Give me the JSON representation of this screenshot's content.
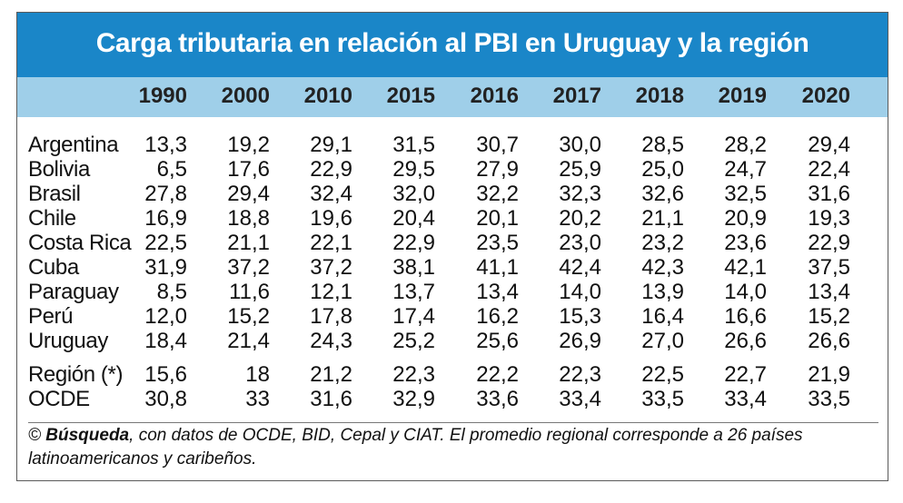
{
  "title": "Carga tributaria en relación al PBI en Uruguay y la región",
  "footer": {
    "copyright": "©",
    "source_brand": "Búsqueda",
    "text": ", con datos de OCDE, BID, Cepal y CIAT. El promedio regional corresponde a 26 países latinoamericanos y caribeños."
  },
  "colors": {
    "title_bg": "#1a86c8",
    "header_bg": "#9fcfe9"
  },
  "chart_data": {
    "type": "table",
    "columns": [
      "1990",
      "2000",
      "2010",
      "2015",
      "2016",
      "2017",
      "2018",
      "2019",
      "2020"
    ],
    "rows": [
      {
        "label": "Argentina",
        "values": [
          "13,3",
          "19,2",
          "29,1",
          "31,5",
          "30,7",
          "30,0",
          "28,5",
          "28,2",
          "29,4"
        ]
      },
      {
        "label": "Bolivia",
        "values": [
          "6,5",
          "17,6",
          "22,9",
          "29,5",
          "27,9",
          "25,9",
          "25,0",
          "24,7",
          "22,4"
        ]
      },
      {
        "label": "Brasil",
        "values": [
          "27,8",
          "29,4",
          "32,4",
          "32,0",
          "32,2",
          "32,3",
          "32,6",
          "32,5",
          "31,6"
        ]
      },
      {
        "label": "Chile",
        "values": [
          "16,9",
          "18,8",
          "19,6",
          "20,4",
          "20,1",
          "20,2",
          "21,1",
          "20,9",
          "19,3"
        ]
      },
      {
        "label": "Costa Rica",
        "values": [
          "22,5",
          "21,1",
          "22,1",
          "22,9",
          "23,5",
          "23,0",
          "23,2",
          "23,6",
          "22,9"
        ]
      },
      {
        "label": "Cuba",
        "values": [
          "31,9",
          "37,2",
          "37,2",
          "38,1",
          "41,1",
          "42,4",
          "42,3",
          "42,1",
          "37,5"
        ]
      },
      {
        "label": "Paraguay",
        "values": [
          "8,5",
          "11,6",
          "12,1",
          "13,7",
          "13,4",
          "14,0",
          "13,9",
          "14,0",
          "13,4"
        ]
      },
      {
        "label": "Perú",
        "values": [
          "12,0",
          "15,2",
          "17,8",
          "17,4",
          "16,2",
          "15,3",
          "16,4",
          "16,6",
          "15,2"
        ]
      },
      {
        "label": "Uruguay",
        "values": [
          "18,4",
          "21,4",
          "24,3",
          "25,2",
          "25,6",
          "26,9",
          "27,0",
          "26,6",
          "26,6"
        ]
      },
      {
        "label": "Región (*)",
        "values": [
          "15,6",
          "18",
          "21,2",
          "22,3",
          "22,2",
          "22,3",
          "22,5",
          "22,7",
          "21,9"
        ]
      },
      {
        "label": "OCDE",
        "values": [
          "30,8",
          "33",
          "31,6",
          "32,9",
          "33,6",
          "33,4",
          "33,5",
          "33,4",
          "33,5"
        ]
      }
    ]
  }
}
